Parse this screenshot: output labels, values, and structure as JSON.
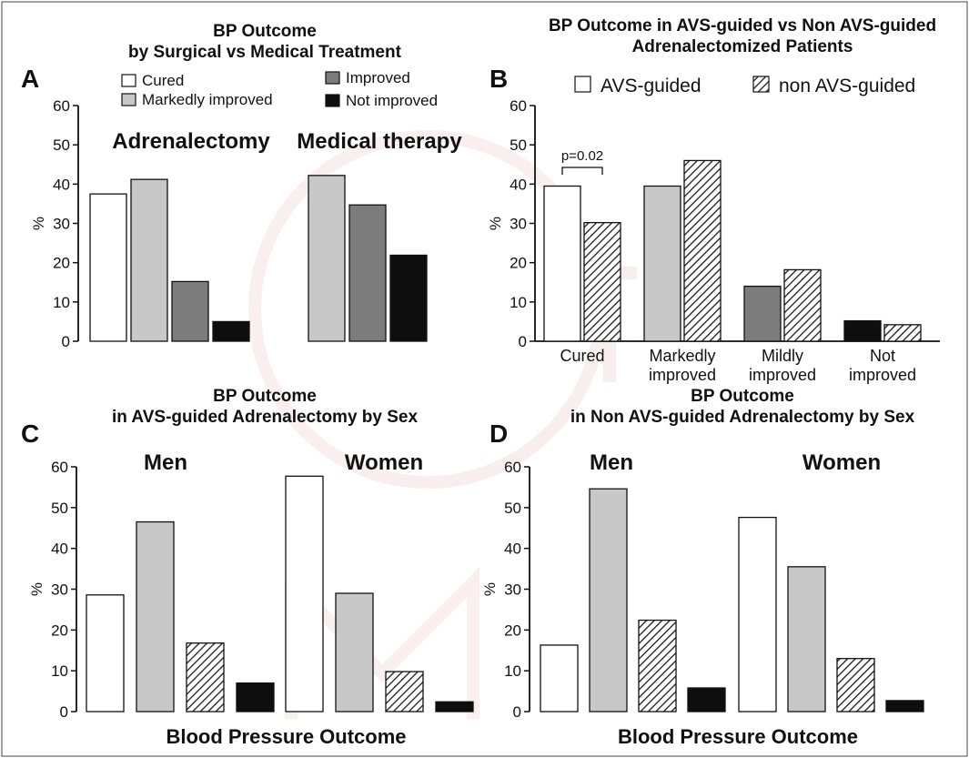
{
  "colors": {
    "cured": "#ffffff",
    "markedly_improved": "#c8c8c8",
    "improved": "#7c7c7c",
    "not_improved": "#0e0e0e",
    "hatch": "#222222"
  },
  "chart_data": [
    {
      "panel": "A",
      "type": "bar",
      "title": "BP Outcome\nby Surgical vs Medical Treatment",
      "ylabel": "%",
      "ylim": [
        0,
        60
      ],
      "yticks": [
        0,
        10,
        20,
        30,
        40,
        50,
        60
      ],
      "legend": [
        "Cured",
        "Markedly improved",
        "Improved",
        "Not improved"
      ],
      "legend_position": "top",
      "groups": [
        "Adrenalectomy",
        "Medical therapy"
      ],
      "series": [
        {
          "name": "Cured",
          "values": [
            37.5,
            null
          ]
        },
        {
          "name": "Markedly improved",
          "values": [
            41.2,
            42.2
          ]
        },
        {
          "name": "Improved",
          "values": [
            15.2,
            34.7
          ]
        },
        {
          "name": "Not improved",
          "values": [
            5.0,
            21.9
          ]
        }
      ]
    },
    {
      "panel": "B",
      "type": "bar",
      "title": "BP Outcome in AVS-guided vs Non AVS-guided\nAdrenalectomized  Patients",
      "ylabel": "%",
      "ylim": [
        0,
        60
      ],
      "yticks": [
        0,
        10,
        20,
        30,
        40,
        50,
        60
      ],
      "legend": [
        "AVS-guided",
        "non AVS-guided"
      ],
      "legend_position": "top",
      "categories": [
        "Cured",
        "Markedly\nimproved",
        "Mildly\nimproved",
        "Not\nimproved"
      ],
      "series": [
        {
          "name": "AVS-guided",
          "values": [
            39.5,
            39.5,
            14.0,
            5.2
          ]
        },
        {
          "name": "non AVS-guided",
          "values": [
            30.2,
            46.0,
            18.2,
            4.2
          ]
        }
      ],
      "annotation": "p=0.02"
    },
    {
      "panel": "C",
      "type": "bar",
      "title": "BP Outcome\nin AVS-guided Adrenalectomy by Sex",
      "ylabel": "%",
      "xlabel": "Blood Pressure Outcome",
      "ylim": [
        0,
        60
      ],
      "yticks": [
        0,
        10,
        20,
        30,
        40,
        50,
        60
      ],
      "groups": [
        "Men",
        "Women"
      ],
      "series": [
        {
          "name": "Cured",
          "values": [
            28.6,
            57.7
          ]
        },
        {
          "name": "Markedly improved",
          "values": [
            46.5,
            29.0
          ]
        },
        {
          "name": "Improved",
          "values": [
            16.8,
            9.8
          ]
        },
        {
          "name": "Not improved",
          "values": [
            7.0,
            2.4
          ]
        }
      ]
    },
    {
      "panel": "D",
      "type": "bar",
      "title": "BP Outcome\nin Non AVS-guided Adrenalectomy by Sex",
      "ylabel": "%",
      "xlabel": "Blood Pressure Outcome",
      "ylim": [
        0,
        60
      ],
      "yticks": [
        0,
        10,
        20,
        30,
        40,
        50,
        60
      ],
      "groups": [
        "Men",
        "Women"
      ],
      "series": [
        {
          "name": "Cured",
          "values": [
            16.3,
            47.6
          ]
        },
        {
          "name": "Markedly improved",
          "values": [
            54.6,
            35.5
          ]
        },
        {
          "name": "Improved",
          "values": [
            22.4,
            13.0
          ]
        },
        {
          "name": "Not improved",
          "values": [
            5.8,
            2.7
          ]
        }
      ]
    }
  ]
}
